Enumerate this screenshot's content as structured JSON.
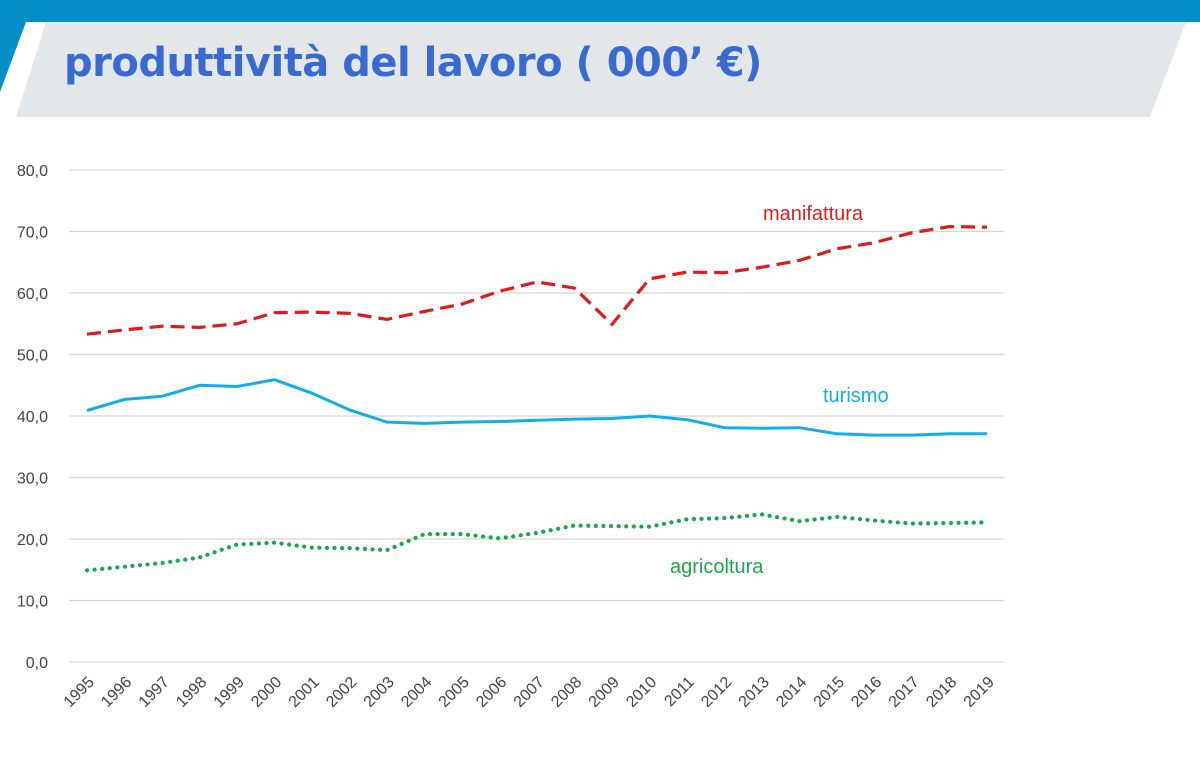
{
  "header": {
    "title": "produttività del lavoro ( 000’ €)",
    "bar_color": "#068fc6",
    "banner_color": "#e4e7e9",
    "title_color": "#3a6ad0"
  },
  "chart_data": {
    "type": "line",
    "title": "produttività del lavoro ( 000’ €)",
    "x": [
      "1995",
      "1996",
      "1997",
      "1998",
      "1999",
      "2000",
      "2001",
      "2002",
      "2003",
      "2004",
      "2005",
      "2006",
      "2007",
      "2008",
      "2009",
      "2010",
      "2011",
      "2012",
      "2013",
      "2014",
      "2015",
      "2016",
      "2017",
      "2018",
      "2019"
    ],
    "ylim": [
      0,
      80
    ],
    "yticks": [
      0,
      10,
      20,
      30,
      40,
      50,
      60,
      70,
      80
    ],
    "ytick_labels": [
      "0,0",
      "10,0",
      "20,0",
      "30,0",
      "40,0",
      "50,0",
      "60,0",
      "70,0",
      "80,0"
    ],
    "grid": "horizontal",
    "legend": "inline labels",
    "series": [
      {
        "name": "manifattura",
        "color": "#e01b1b",
        "style": "dashed",
        "values": [
          53.3,
          54.0,
          54.6,
          54.4,
          55.0,
          56.8,
          56.9,
          56.7,
          55.7,
          57.0,
          58.2,
          60.3,
          61.8,
          60.8,
          54.9,
          62.3,
          63.4,
          63.3,
          64.2,
          65.3,
          67.2,
          68.2,
          69.8,
          70.8,
          70.7
        ]
      },
      {
        "name": "turismo",
        "color": "#12aee4",
        "style": "solid",
        "values": [
          40.9,
          42.7,
          43.2,
          45.0,
          44.8,
          45.9,
          43.7,
          41.0,
          39.0,
          38.8,
          39.0,
          39.1,
          39.3,
          39.5,
          39.6,
          40.0,
          39.4,
          38.1,
          38.0,
          38.1,
          37.1,
          36.9,
          36.9,
          37.1,
          37.1
        ]
      },
      {
        "name": "agricoltura",
        "color": "#1aa84e",
        "style": "dotted",
        "values": [
          14.9,
          15.5,
          16.1,
          17.0,
          19.1,
          19.4,
          18.6,
          18.5,
          18.2,
          20.8,
          20.8,
          20.1,
          21.0,
          22.2,
          22.1,
          22.0,
          23.2,
          23.4,
          24.0,
          22.9,
          23.6,
          23.0,
          22.5,
          22.6,
          22.7
        ]
      }
    ]
  }
}
